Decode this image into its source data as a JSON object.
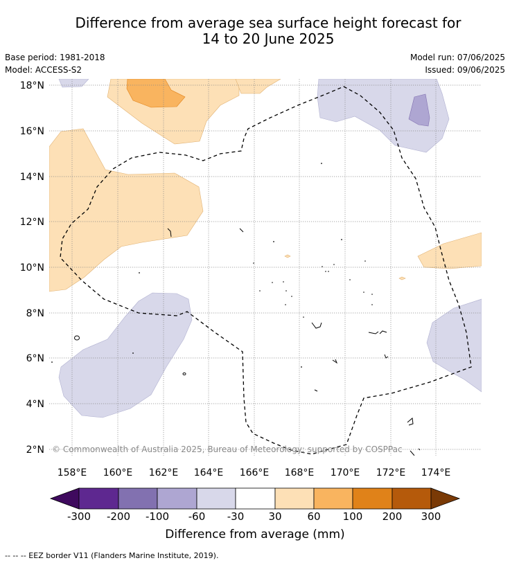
{
  "title_line1": "Difference from average sea surface height forecast for",
  "title_line2": "14 to 20 June 2025",
  "base_period": "Base period: 1981-2018",
  "model": "Model: ACCESS-S2",
  "model_run": "Model run: 07/06/2025",
  "issued": "Issued: 09/06/2025",
  "copyright": "© Commonwealth of Australia 2025, Bureau of Meteorology; supported by COSPPac",
  "lat_labels": [
    "18°N",
    "16°N",
    "14°N",
    "12°N",
    "10°N",
    "8°N",
    "6°N",
    "4°N",
    "2°N"
  ],
  "lon_labels": [
    "158°E",
    "160°E",
    "162°E",
    "164°E",
    "166°E",
    "168°E",
    "170°E",
    "172°E",
    "174°E"
  ],
  "colorbar": {
    "ticks": [
      "-300",
      "-200",
      "-100",
      "-60",
      "-30",
      "30",
      "60",
      "100",
      "200",
      "300"
    ],
    "colors": [
      "#3f0a5e",
      "#5e2890",
      "#8271b0",
      "#aea6d2",
      "#d8d8ea",
      "#ffffff",
      "#fde0b6",
      "#f9b45f",
      "#e08219",
      "#b55a0b",
      "#7a3a06"
    ],
    "label": "Difference from average (mm)"
  },
  "footer": "--  --  -- EEZ border V11 (Flanders Marine Institute, 2019)."
}
